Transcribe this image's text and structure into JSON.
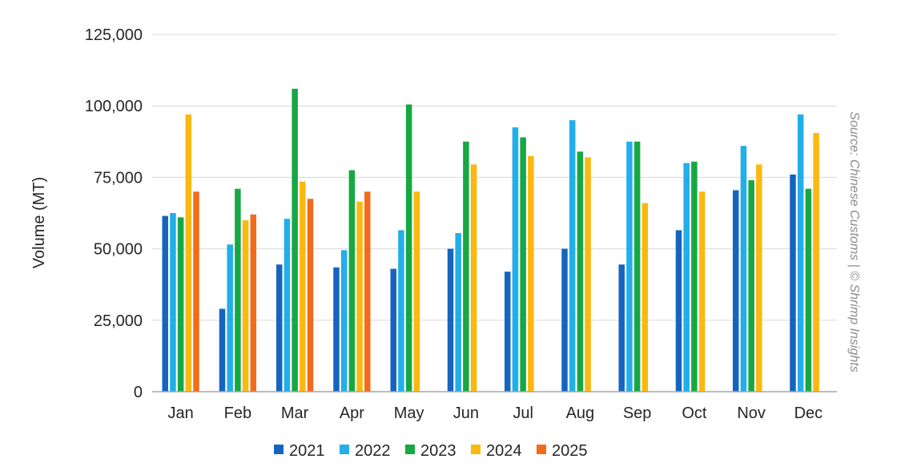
{
  "chart_data": {
    "type": "bar",
    "title": "",
    "xlabel": "",
    "ylabel": "Volume (MT)",
    "ylim": [
      0,
      125000
    ],
    "yticks": [
      0,
      25000,
      50000,
      75000,
      100000,
      125000
    ],
    "ytick_labels": [
      "0",
      "25,000",
      "50,000",
      "75,000",
      "100,000",
      "125,000"
    ],
    "grid": true,
    "legend_position": "bottom-center",
    "categories": [
      "Jan",
      "Feb",
      "Mar",
      "Apr",
      "May",
      "Jun",
      "Jul",
      "Aug",
      "Sep",
      "Oct",
      "Nov",
      "Dec"
    ],
    "series": [
      {
        "name": "2021",
        "color": "#1565c0",
        "values": [
          61500,
          29000,
          44500,
          43500,
          43000,
          50000,
          42000,
          50000,
          44500,
          56500,
          70500,
          76000
        ]
      },
      {
        "name": "2022",
        "color": "#22aee8",
        "values": [
          62500,
          51500,
          60500,
          49500,
          56500,
          55500,
          92500,
          95000,
          87500,
          80000,
          86000,
          97000
        ]
      },
      {
        "name": "2023",
        "color": "#16a843",
        "values": [
          61000,
          71000,
          106000,
          77500,
          100500,
          87500,
          89000,
          84000,
          87500,
          80500,
          74000,
          71000
        ]
      },
      {
        "name": "2024",
        "color": "#fbb80f",
        "values": [
          97000,
          60000,
          73500,
          66500,
          70000,
          79500,
          82500,
          82000,
          66000,
          70000,
          79500,
          90500
        ]
      },
      {
        "name": "2025",
        "color": "#f26b1d",
        "values": [
          70000,
          62000,
          67500,
          70000,
          null,
          null,
          null,
          null,
          null,
          null,
          null,
          null
        ]
      }
    ],
    "source_note": "Source: Chinese Customs | © Shrimp Insights"
  }
}
